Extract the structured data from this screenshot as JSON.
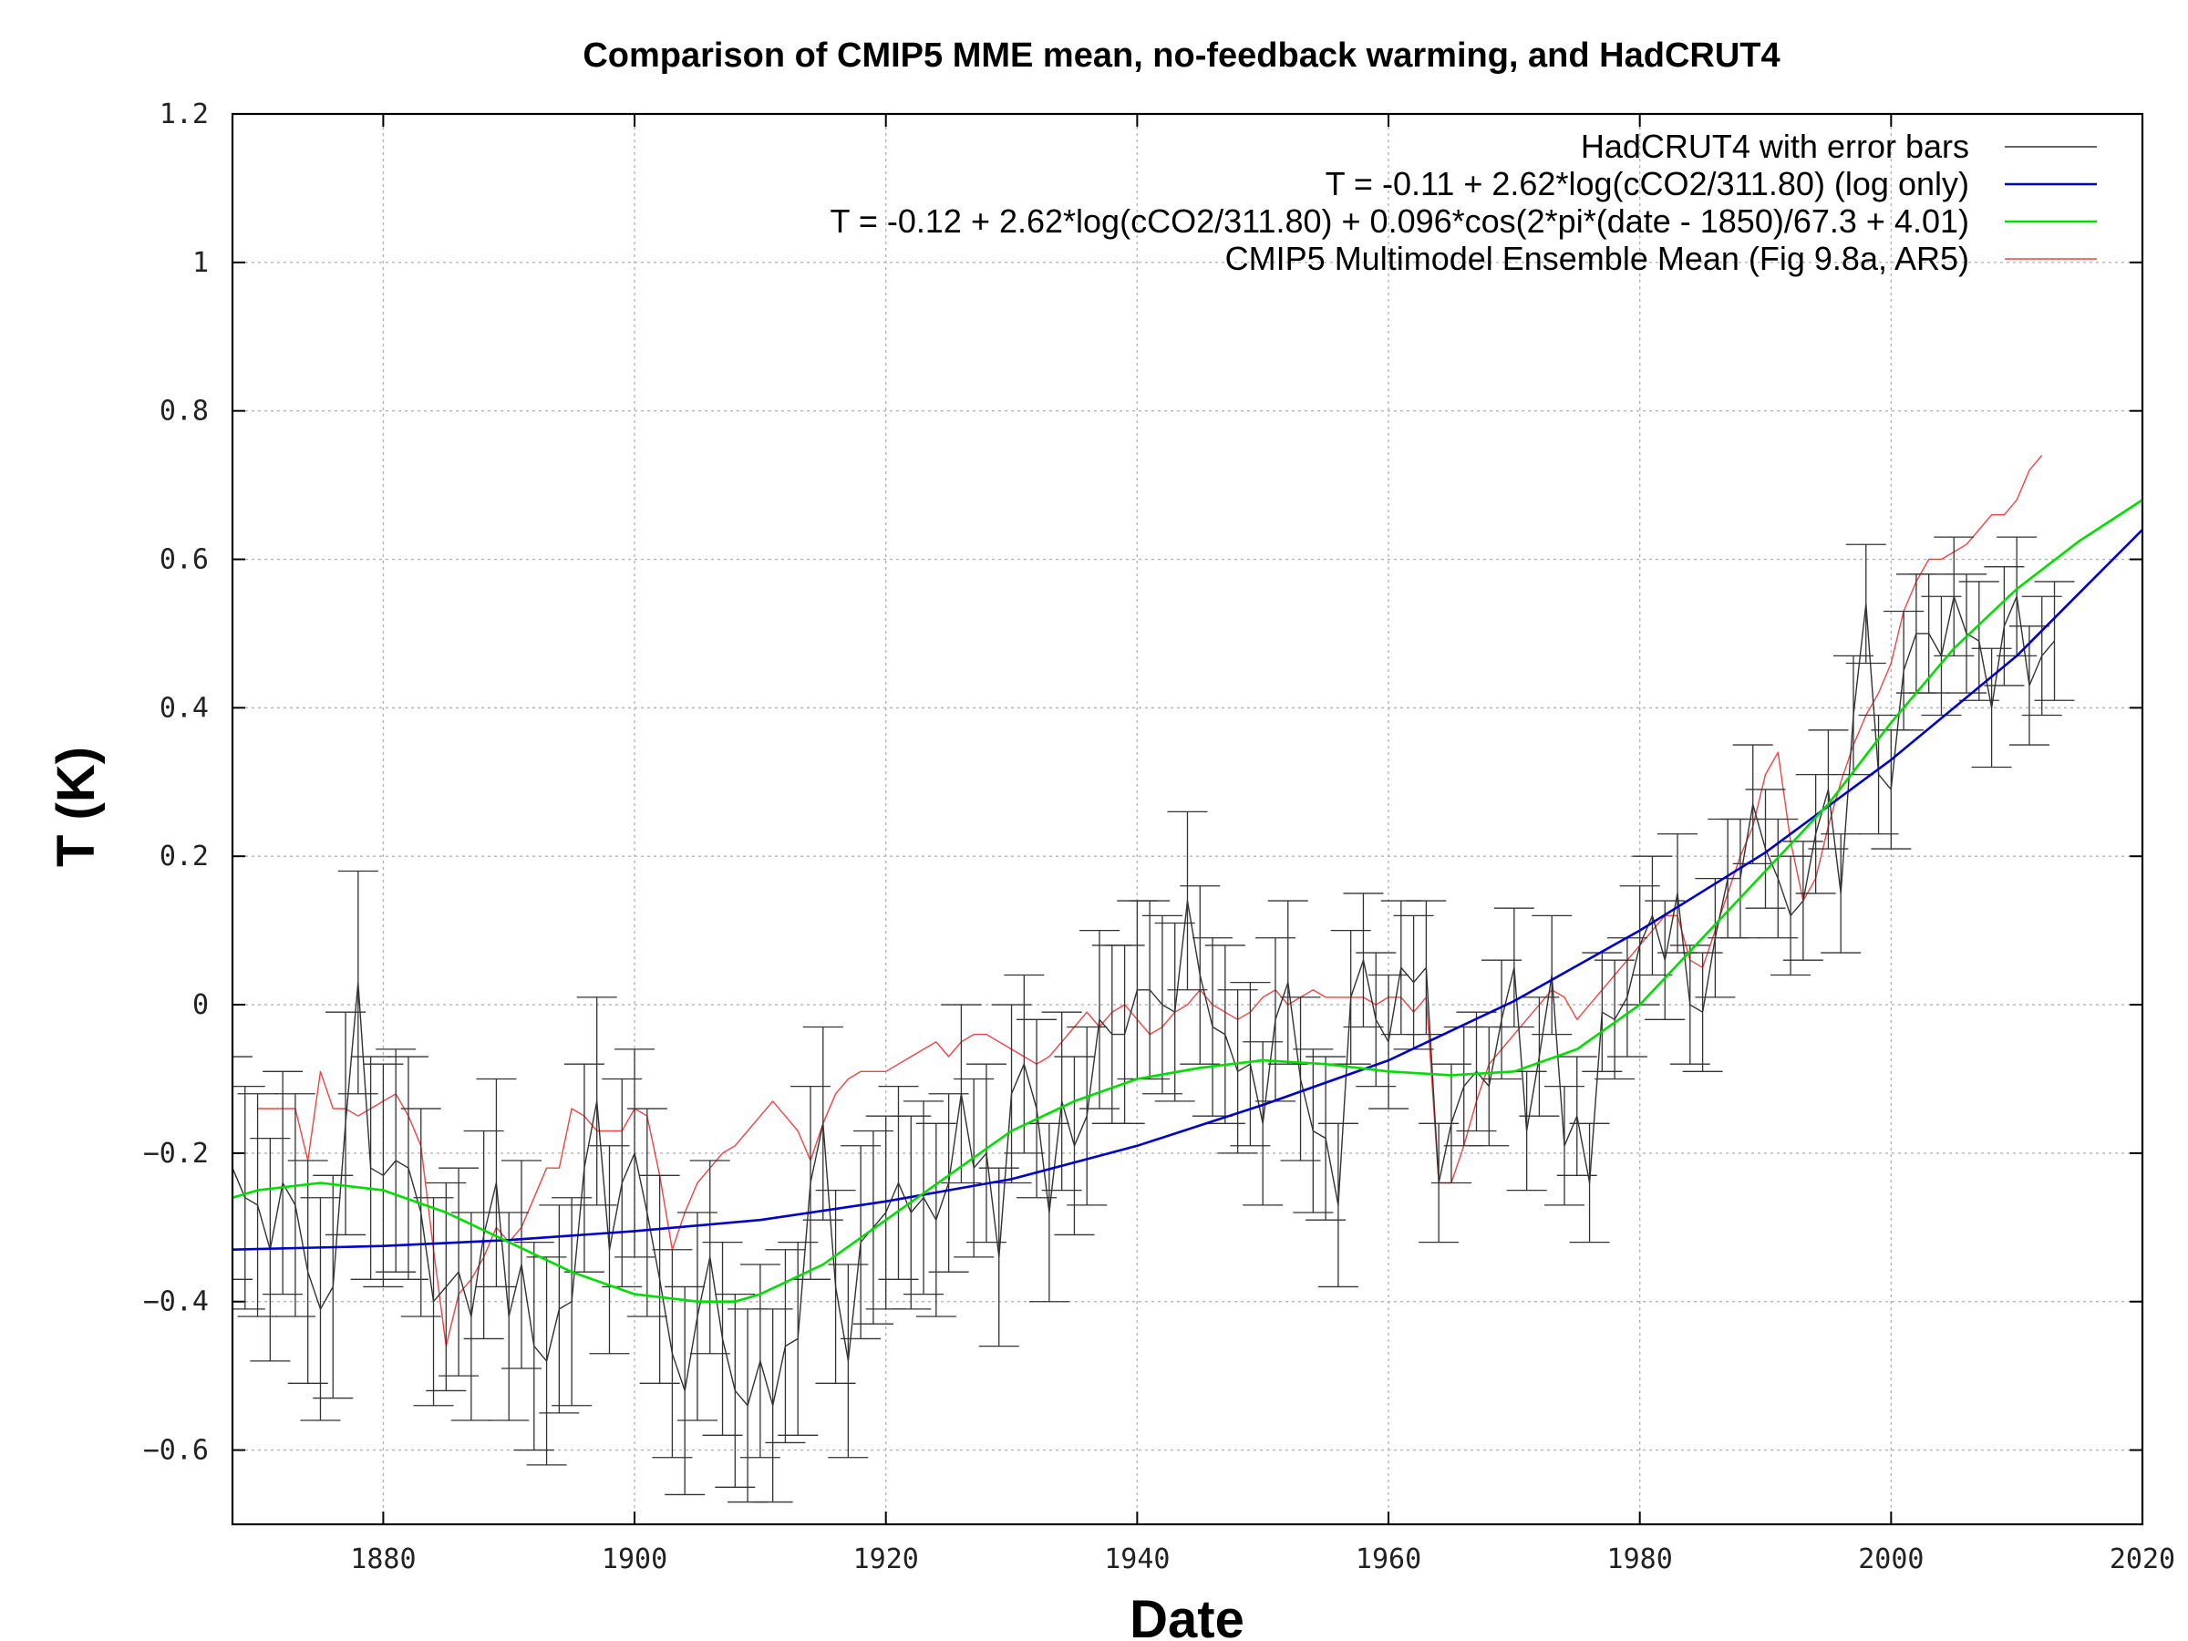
{
  "chart_data": {
    "type": "line",
    "title": "Comparison of CMIP5 MME mean, no-feedback warming, and HadCRUT4",
    "xlabel": "Date",
    "ylabel": "T (K)",
    "xlim": [
      1868,
      2020
    ],
    "ylim": [
      -0.7,
      1.2
    ],
    "xticks": [
      1880,
      1900,
      1920,
      1940,
      1960,
      1980,
      2000,
      2020
    ],
    "xtick_labels": [
      "1880",
      "1900",
      "1920",
      "1940",
      "1960",
      "1980",
      "2000",
      "2020"
    ],
    "yticks": [
      -0.6,
      -0.4,
      -0.2,
      0,
      0.2,
      0.4,
      0.6,
      0.8,
      1,
      1.2
    ],
    "ytick_labels": [
      "−0.6",
      "−0.4",
      "−0.2",
      "0",
      "0.2",
      "0.4",
      "0.6",
      "0.8",
      "1",
      "1.2"
    ],
    "grid": true,
    "legend_position": "top-right",
    "series": [
      {
        "name": "HadCRUT4 with error bars",
        "color": "#333333",
        "style": "line-with-errorbars",
        "x": [
          1868,
          1869,
          1870,
          1871,
          1872,
          1873,
          1874,
          1875,
          1876,
          1877,
          1878,
          1879,
          1880,
          1881,
          1882,
          1883,
          1884,
          1885,
          1886,
          1887,
          1888,
          1889,
          1890,
          1891,
          1892,
          1893,
          1894,
          1895,
          1896,
          1897,
          1898,
          1899,
          1900,
          1901,
          1902,
          1903,
          1904,
          1905,
          1906,
          1907,
          1908,
          1909,
          1910,
          1911,
          1912,
          1913,
          1914,
          1915,
          1916,
          1917,
          1918,
          1919,
          1920,
          1921,
          1922,
          1923,
          1924,
          1925,
          1926,
          1927,
          1928,
          1929,
          1930,
          1931,
          1932,
          1933,
          1934,
          1935,
          1936,
          1937,
          1938,
          1939,
          1940,
          1941,
          1942,
          1943,
          1944,
          1945,
          1946,
          1947,
          1948,
          1949,
          1950,
          1951,
          1952,
          1953,
          1954,
          1955,
          1956,
          1957,
          1958,
          1959,
          1960,
          1961,
          1962,
          1963,
          1964,
          1965,
          1966,
          1967,
          1968,
          1969,
          1970,
          1971,
          1972,
          1973,
          1974,
          1975,
          1976,
          1977,
          1978,
          1979,
          1980,
          1981,
          1982,
          1983,
          1984,
          1985,
          1986,
          1987,
          1988,
          1989,
          1990,
          1991,
          1992,
          1993,
          1994,
          1995,
          1996,
          1997,
          1998,
          1999,
          2000,
          2001,
          2002,
          2003,
          2004,
          2005,
          2006,
          2007,
          2008,
          2009,
          2010,
          2011,
          2012,
          2013
        ],
        "y": [
          -0.22,
          -0.26,
          -0.27,
          -0.33,
          -0.24,
          -0.27,
          -0.36,
          -0.41,
          -0.38,
          -0.16,
          0.03,
          -0.22,
          -0.23,
          -0.21,
          -0.22,
          -0.28,
          -0.4,
          -0.38,
          -0.36,
          -0.42,
          -0.31,
          -0.24,
          -0.42,
          -0.35,
          -0.46,
          -0.48,
          -0.41,
          -0.4,
          -0.22,
          -0.13,
          -0.33,
          -0.24,
          -0.2,
          -0.28,
          -0.37,
          -0.47,
          -0.52,
          -0.42,
          -0.34,
          -0.45,
          -0.52,
          -0.54,
          -0.48,
          -0.54,
          -0.46,
          -0.45,
          -0.24,
          -0.16,
          -0.38,
          -0.48,
          -0.32,
          -0.3,
          -0.28,
          -0.24,
          -0.28,
          -0.26,
          -0.29,
          -0.24,
          -0.12,
          -0.22,
          -0.2,
          -0.34,
          -0.12,
          -0.08,
          -0.14,
          -0.28,
          -0.13,
          -0.19,
          -0.15,
          -0.02,
          -0.04,
          -0.04,
          0.02,
          0.02,
          0.0,
          -0.01,
          0.14,
          0.04,
          -0.03,
          -0.04,
          -0.09,
          -0.08,
          -0.16,
          -0.02,
          0.03,
          -0.1,
          -0.17,
          -0.18,
          -0.27,
          0.01,
          0.06,
          -0.02,
          -0.05,
          0.05,
          0.03,
          0.05,
          -0.24,
          -0.16,
          -0.11,
          -0.09,
          -0.11,
          -0.02,
          0.05,
          -0.17,
          -0.07,
          0.04,
          -0.19,
          -0.15,
          -0.24,
          -0.01,
          -0.02,
          0.01,
          0.08,
          0.12,
          0.06,
          0.15,
          0.0,
          -0.01,
          0.09,
          0.17,
          0.17,
          0.27,
          0.21,
          0.17,
          0.12,
          0.14,
          0.23,
          0.29,
          0.15,
          0.39,
          0.54,
          0.31,
          0.29,
          0.45,
          0.5,
          0.5,
          0.47,
          0.55,
          0.5,
          0.49,
          0.4,
          0.51,
          0.55,
          0.43,
          0.47,
          0.49
        ],
        "error": [
          0.15,
          0.15,
          0.15,
          0.15,
          0.15,
          0.15,
          0.15,
          0.15,
          0.15,
          0.15,
          0.15,
          0.15,
          0.15,
          0.15,
          0.15,
          0.14,
          0.14,
          0.14,
          0.14,
          0.14,
          0.14,
          0.14,
          0.14,
          0.14,
          0.14,
          0.14,
          0.14,
          0.14,
          0.14,
          0.14,
          0.14,
          0.14,
          0.14,
          0.14,
          0.14,
          0.14,
          0.14,
          0.14,
          0.13,
          0.13,
          0.13,
          0.13,
          0.13,
          0.13,
          0.13,
          0.13,
          0.13,
          0.13,
          0.13,
          0.13,
          0.13,
          0.13,
          0.13,
          0.13,
          0.13,
          0.13,
          0.13,
          0.12,
          0.12,
          0.12,
          0.12,
          0.12,
          0.12,
          0.12,
          0.12,
          0.12,
          0.12,
          0.12,
          0.12,
          0.12,
          0.12,
          0.12,
          0.12,
          0.12,
          0.12,
          0.12,
          0.12,
          0.12,
          0.12,
          0.12,
          0.11,
          0.11,
          0.11,
          0.11,
          0.11,
          0.11,
          0.11,
          0.11,
          0.11,
          0.09,
          0.09,
          0.09,
          0.09,
          0.09,
          0.09,
          0.09,
          0.08,
          0.08,
          0.08,
          0.08,
          0.08,
          0.08,
          0.08,
          0.08,
          0.08,
          0.08,
          0.08,
          0.08,
          0.08,
          0.08,
          0.08,
          0.08,
          0.08,
          0.08,
          0.08,
          0.08,
          0.08,
          0.08,
          0.08,
          0.08,
          0.08,
          0.08,
          0.08,
          0.08,
          0.08,
          0.08,
          0.08,
          0.08,
          0.08,
          0.08,
          0.08,
          0.08,
          0.08,
          0.08,
          0.08,
          0.08,
          0.08,
          0.08,
          0.08,
          0.08,
          0.08,
          0.08,
          0.08,
          0.08,
          0.08,
          0.08
        ]
      },
      {
        "name": "T = -0.11 + 2.62*log(cCO2/311.80) (log only)",
        "color": "#0000cc",
        "style": "line",
        "x": [
          1868,
          1880,
          1890,
          1900,
          1910,
          1920,
          1930,
          1940,
          1950,
          1960,
          1970,
          1980,
          1990,
          2000,
          2010,
          2020
        ],
        "y": [
          -0.33,
          -0.325,
          -0.317,
          -0.305,
          -0.29,
          -0.265,
          -0.235,
          -0.19,
          -0.135,
          -0.075,
          0.005,
          0.1,
          0.205,
          0.33,
          0.47,
          0.64
        ]
      },
      {
        "name": "T = -0.12 + 2.62*log(cCO2/311.80) + 0.096*cos(2*pi*(date - 1850)/67.3 + 4.01)",
        "color": "#00dd00",
        "style": "line",
        "x": [
          1868,
          1870,
          1875,
          1880,
          1885,
          1890,
          1895,
          1900,
          1905,
          1908,
          1910,
          1915,
          1920,
          1925,
          1930,
          1935,
          1940,
          1945,
          1950,
          1955,
          1960,
          1965,
          1970,
          1975,
          1980,
          1985,
          1990,
          1995,
          2000,
          2005,
          2010,
          2015,
          2020
        ],
        "y": [
          -0.26,
          -0.25,
          -0.24,
          -0.25,
          -0.28,
          -0.32,
          -0.36,
          -0.39,
          -0.4,
          -0.4,
          -0.39,
          -0.35,
          -0.29,
          -0.23,
          -0.17,
          -0.13,
          -0.1,
          -0.085,
          -0.075,
          -0.08,
          -0.09,
          -0.095,
          -0.09,
          -0.06,
          0.0,
          0.09,
          0.18,
          0.27,
          0.38,
          0.48,
          0.56,
          0.625,
          0.68
        ]
      },
      {
        "name": "CMIP5 Multimodel Ensemble Mean (Fig 9.8a, AR5)",
        "color": "#ee4444",
        "style": "line",
        "x": [
          1870,
          1871,
          1872,
          1873,
          1874,
          1875,
          1876,
          1877,
          1878,
          1879,
          1880,
          1881,
          1882,
          1883,
          1884,
          1885,
          1886,
          1887,
          1888,
          1889,
          1890,
          1891,
          1892,
          1893,
          1894,
          1895,
          1896,
          1897,
          1898,
          1899,
          1900,
          1901,
          1902,
          1903,
          1904,
          1905,
          1906,
          1907,
          1908,
          1909,
          1910,
          1911,
          1912,
          1913,
          1914,
          1915,
          1916,
          1917,
          1918,
          1919,
          1920,
          1921,
          1922,
          1923,
          1924,
          1925,
          1926,
          1927,
          1928,
          1929,
          1930,
          1931,
          1932,
          1933,
          1934,
          1935,
          1936,
          1937,
          1938,
          1939,
          1940,
          1941,
          1942,
          1943,
          1944,
          1945,
          1946,
          1947,
          1948,
          1949,
          1950,
          1951,
          1952,
          1953,
          1954,
          1955,
          1956,
          1957,
          1958,
          1959,
          1960,
          1961,
          1962,
          1963,
          1964,
          1965,
          1966,
          1967,
          1968,
          1969,
          1970,
          1971,
          1972,
          1973,
          1974,
          1975,
          1976,
          1977,
          1978,
          1979,
          1980,
          1981,
          1982,
          1983,
          1984,
          1985,
          1986,
          1987,
          1988,
          1989,
          1990,
          1991,
          1992,
          1993,
          1994,
          1995,
          1996,
          1997,
          1998,
          1999,
          2000,
          2001,
          2002,
          2003,
          2004,
          2005,
          2006,
          2007,
          2008,
          2009,
          2010,
          2011,
          2012
        ],
        "y": [
          -0.14,
          -0.14,
          -0.14,
          -0.14,
          -0.21,
          -0.09,
          -0.14,
          -0.14,
          -0.15,
          -0.14,
          -0.13,
          -0.12,
          -0.15,
          -0.19,
          -0.33,
          -0.46,
          -0.39,
          -0.37,
          -0.34,
          -0.3,
          -0.32,
          -0.3,
          -0.26,
          -0.22,
          -0.22,
          -0.14,
          -0.15,
          -0.17,
          -0.17,
          -0.17,
          -0.14,
          -0.15,
          -0.23,
          -0.33,
          -0.28,
          -0.24,
          -0.22,
          -0.2,
          -0.19,
          -0.17,
          -0.15,
          -0.13,
          -0.15,
          -0.17,
          -0.21,
          -0.16,
          -0.12,
          -0.1,
          -0.09,
          -0.09,
          -0.09,
          -0.08,
          -0.07,
          -0.06,
          -0.05,
          -0.07,
          -0.05,
          -0.04,
          -0.04,
          -0.05,
          -0.06,
          -0.07,
          -0.08,
          -0.07,
          -0.05,
          -0.03,
          -0.01,
          -0.03,
          -0.01,
          0.0,
          -0.02,
          -0.04,
          -0.03,
          -0.01,
          0.0,
          0.02,
          0.0,
          -0.01,
          -0.02,
          -0.01,
          0.01,
          0.02,
          0.0,
          0.01,
          0.02,
          0.01,
          0.01,
          0.01,
          0.01,
          0.0,
          0.01,
          0.01,
          -0.01,
          0.01,
          -0.24,
          -0.24,
          -0.19,
          -0.13,
          -0.08,
          -0.06,
          -0.04,
          -0.02,
          0.0,
          0.02,
          0.01,
          -0.02,
          0.0,
          0.02,
          0.04,
          0.06,
          0.08,
          0.1,
          0.12,
          0.12,
          0.06,
          0.05,
          0.1,
          0.15,
          0.2,
          0.24,
          0.31,
          0.34,
          0.22,
          0.14,
          0.17,
          0.24,
          0.3,
          0.35,
          0.39,
          0.42,
          0.46,
          0.53,
          0.57,
          0.6,
          0.6,
          0.61,
          0.62,
          0.64,
          0.66,
          0.66,
          0.68,
          0.72,
          0.74
        ]
      }
    ]
  }
}
